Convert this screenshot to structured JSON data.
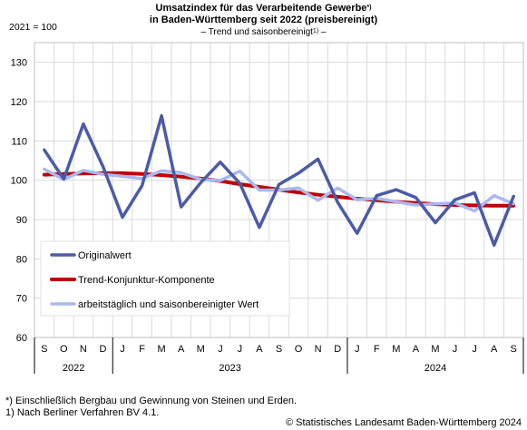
{
  "header": {
    "title_line1": "Umsatzindex für das Verarbeitende Gewerbe",
    "title_line1_sup": "*)",
    "title_line2": "in Baden-Württemberg seit 2022 (preisbereinigt)",
    "subtitle_prefix": "– Trend und saisonbereinigt",
    "subtitle_sup": "1)",
    "subtitle_suffix": " –"
  },
  "baseline_label": "2021 = 100",
  "footnotes": {
    "note1": "*) Einschließlich Bergbau und Gewinnung von Steinen und Erden.",
    "note2": "1) Nach Berliner Verfahren BV 4.1.",
    "copyright": "© Statistisches Landesamt Baden-Württemberg 2024"
  },
  "colors": {
    "original": "#4a5ba8",
    "trend": "#c00000",
    "adjusted": "#a9b8ef",
    "grid": "#d9d9d9"
  },
  "chart_data": {
    "type": "line",
    "categories": [
      "S",
      "O",
      "N",
      "D",
      "J",
      "F",
      "M",
      "A",
      "M",
      "J",
      "J",
      "A",
      "S",
      "O",
      "N",
      "D",
      "J",
      "F",
      "M",
      "A",
      "M",
      "J",
      "J",
      "A",
      "S"
    ],
    "years": [
      {
        "label": "2022",
        "start": 0,
        "end": 3
      },
      {
        "label": "2023",
        "start": 4,
        "end": 15
      },
      {
        "label": "2024",
        "start": 16,
        "end": 24
      }
    ],
    "ylim": [
      60,
      135
    ],
    "yticks": [
      60,
      70,
      80,
      90,
      100,
      110,
      120,
      130
    ],
    "grid": true,
    "legend_position": "bottom-left",
    "series": [
      {
        "name": "Originalwert",
        "key": "original",
        "values": [
          107.7,
          100.3,
          114.3,
          103.5,
          90.6,
          98.6,
          116.4,
          93.2,
          99.4,
          104.6,
          99.2,
          88.0,
          98.9,
          101.8,
          105.4,
          94.4,
          86.5,
          96.1,
          97.6,
          95.6,
          89.2,
          95.0,
          96.8,
          83.5,
          95.9
        ]
      },
      {
        "name": "Trend-Konjunktur-Komponente",
        "key": "trend",
        "values": [
          101.4,
          101.6,
          101.7,
          101.8,
          101.8,
          101.6,
          101.3,
          100.9,
          100.4,
          99.8,
          99.0,
          98.3,
          97.6,
          96.9,
          96.3,
          95.8,
          95.3,
          94.9,
          94.5,
          94.2,
          93.9,
          93.7,
          93.6,
          93.5,
          93.5
        ]
      },
      {
        "name": "arbeitstäglich und saisonbereinigter Wert",
        "key": "adjusted",
        "values": [
          102.8,
          100.2,
          102.5,
          101.5,
          101.0,
          100.4,
          102.4,
          101.9,
          100.2,
          99.9,
          102.3,
          97.5,
          97.5,
          98.0,
          94.9,
          98.0,
          95.0,
          95.4,
          94.5,
          93.7,
          94.0,
          94.2,
          92.2,
          96.1,
          94.0
        ]
      }
    ]
  }
}
